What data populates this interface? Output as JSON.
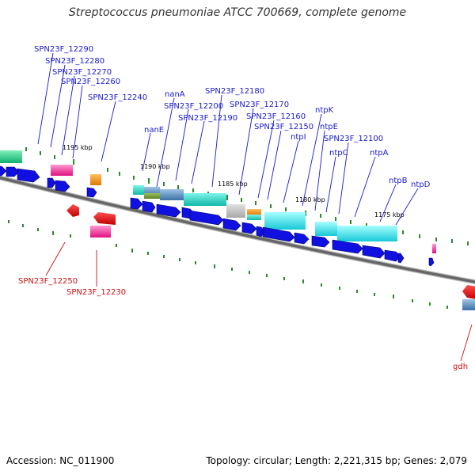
{
  "title": "Streptococcus pneumoniae ATCC 700669, complete genome",
  "footer": {
    "accession": "Accession: NC_011900",
    "topology": "Topology: circular; Length: 2,221,315 bp; Genes: 2,079"
  },
  "colors": {
    "forward_label": "#1a1acc",
    "reverse_label": "#cc1111",
    "gene_arrow": "#1010e0",
    "backbone": "#777777",
    "tick": "#2a8a2a"
  },
  "ticks": [
    "1195 kbp",
    "1190 kbp",
    "1185 kbp",
    "1180 kbp",
    "1175 kbp"
  ],
  "forward_labels": [
    "SPN23F_12290",
    "SPN23F_12280",
    "SPN23F_12270",
    "SPN23F_12260",
    "SPN23F_12240",
    "nanA",
    "SPN23F_12200",
    "SPN23F_12190",
    "nanE",
    "SPN23F_12180",
    "SPN23F_12170",
    "SPN23F_12160",
    "SPN23F_12150",
    "ntpI",
    "ntpK",
    "ntpE",
    "SPN23F_12100",
    "ntpC",
    "ntpA",
    "ntpB",
    "ntpD"
  ],
  "reverse_labels": [
    "SPN23F_12250",
    "SPN23F_12230",
    "gdh"
  ]
}
